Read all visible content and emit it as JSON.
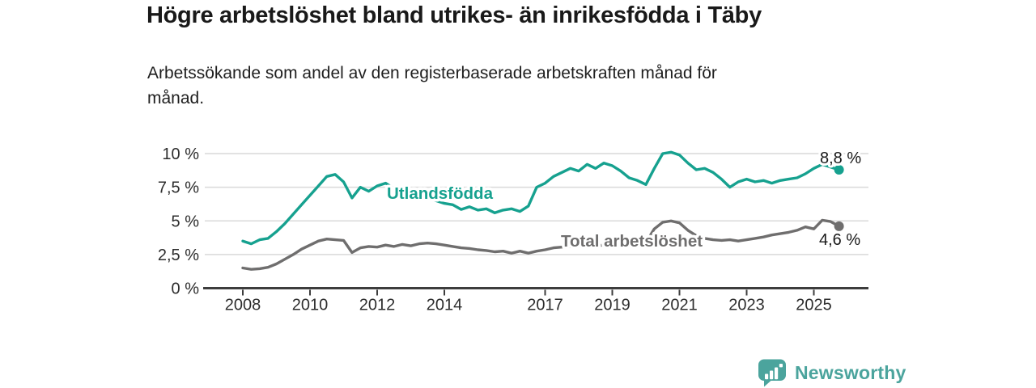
{
  "header": {
    "title": "Högre arbetslöshet bland utrikes- än inrikesfödda i Täby",
    "subtitle_lines": [
      "Arbetssökande som andel av den registerbaserade arbetskraften månad för",
      "månad."
    ]
  },
  "colors": {
    "utlandsfodda": "#16a18f",
    "total": "#6f6e6e",
    "brand_teal": "#4ba49d",
    "grid": "#d9d9d9",
    "axis": "#3d3d3d",
    "text_dark": "#191919"
  },
  "chart_data": {
    "type": "line",
    "title": "Högre arbetslöshet bland utrikes- än inrikesfödda i Täby",
    "subtitle": "Arbetssökande som andel av den registerbaserade arbetskraften månad för månad.",
    "grid": true,
    "legend_position": "inline-labels-on-lines",
    "x_axis": {
      "tick_values": [
        2008,
        2010,
        2012,
        2014,
        2017,
        2019,
        2021,
        2023,
        2025
      ],
      "tick_labels": [
        "2008",
        "2010",
        "2012",
        "2014",
        "2017",
        "2019",
        "2021",
        "2023",
        "2025"
      ],
      "range": [
        2006.9,
        2026.6
      ]
    },
    "y_axis": {
      "tick_values": [
        0,
        2.5,
        5,
        7.5,
        10
      ],
      "tick_labels": [
        "0 %",
        "2,5 %",
        "5 %",
        "7,5 %",
        "10 %"
      ],
      "range": [
        0,
        10.6
      ],
      "unit": "percent"
    },
    "x_start": 2008.0,
    "x_step": 0.25,
    "series": [
      {
        "id": "utlandsfodda",
        "label": "Utlandsfödda",
        "color": "#16a18f",
        "end_label": "8,8 %",
        "end_value": 8.8,
        "values": [
          3.5,
          3.3,
          3.6,
          3.7,
          4.2,
          4.8,
          5.5,
          6.2,
          6.9,
          7.6,
          8.3,
          8.45,
          7.9,
          6.7,
          7.5,
          7.2,
          7.6,
          7.8,
          7.4,
          7.3,
          7.2,
          7.0,
          6.8,
          6.5,
          6.3,
          6.2,
          5.85,
          6.05,
          5.8,
          5.9,
          5.6,
          5.8,
          5.9,
          5.7,
          6.1,
          7.5,
          7.8,
          8.3,
          8.6,
          8.9,
          8.7,
          9.2,
          8.9,
          9.3,
          9.1,
          8.7,
          8.2,
          8.0,
          7.7,
          8.9,
          10.0,
          10.1,
          9.9,
          9.3,
          8.8,
          8.9,
          8.6,
          8.1,
          7.5,
          7.9,
          8.1,
          7.9,
          8.0,
          7.8,
          8.0,
          8.1,
          8.2,
          8.5,
          8.9,
          9.2,
          9.0,
          8.8
        ]
      },
      {
        "id": "total",
        "label": "Total arbetslöshet",
        "color": "#6f6e6e",
        "end_label": "4,6 %",
        "end_value": 4.6,
        "values": [
          1.5,
          1.4,
          1.45,
          1.55,
          1.8,
          2.15,
          2.5,
          2.9,
          3.2,
          3.5,
          3.65,
          3.6,
          3.55,
          2.65,
          3.0,
          3.1,
          3.05,
          3.2,
          3.1,
          3.25,
          3.15,
          3.3,
          3.35,
          3.3,
          3.2,
          3.1,
          3.0,
          2.95,
          2.85,
          2.8,
          2.7,
          2.75,
          2.6,
          2.75,
          2.6,
          2.75,
          2.85,
          3.0,
          3.05,
          3.1,
          3.1,
          3.2,
          3.15,
          3.2,
          3.25,
          3.3,
          3.3,
          3.35,
          3.4,
          4.4,
          4.9,
          5.0,
          4.85,
          4.3,
          3.9,
          3.7,
          3.6,
          3.55,
          3.6,
          3.5,
          3.6,
          3.7,
          3.8,
          3.95,
          4.05,
          4.15,
          4.3,
          4.55,
          4.4,
          5.05,
          4.95,
          4.6
        ]
      }
    ]
  },
  "footer": {
    "brand": "Newsworthy"
  }
}
